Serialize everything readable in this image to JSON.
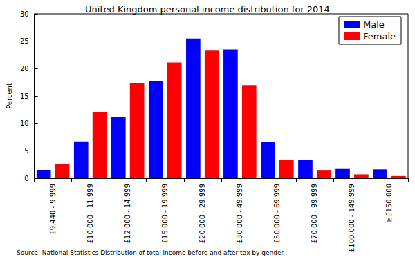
{
  "chart_data": {
    "type": "bar",
    "title": "United Kingdom personal income distribution for 2014",
    "ylabel": "Percent",
    "categories": [
      "£9.440 - 9.999",
      "£10.000 - 11.999",
      "£12.000 - 14.999",
      "£15.000 - 19.999",
      "£20.000 - 29.999",
      "£30.000 - 49.999",
      "£50.000 - 69.999",
      "£70.000 - 99.999",
      "£100.000 - 149.999",
      "≥£150.000"
    ],
    "series": [
      {
        "name": "Male",
        "color": "#0000ff",
        "values": [
          1.5,
          6.7,
          11.2,
          17.7,
          25.5,
          23.5,
          6.6,
          3.4,
          1.8,
          1.6
        ]
      },
      {
        "name": "Female",
        "color": "#ff0000",
        "values": [
          2.6,
          12.1,
          17.4,
          21.1,
          23.3,
          17.0,
          3.4,
          1.5,
          0.7,
          0.4
        ]
      }
    ],
    "ylim": [
      0,
      30
    ],
    "yticks": [
      0,
      5,
      10,
      15,
      20,
      25,
      30
    ],
    "grid": false,
    "legend": "upper right",
    "annotations": [
      "Source: National Statistics Distribution of total income before and after tax by gender"
    ]
  }
}
